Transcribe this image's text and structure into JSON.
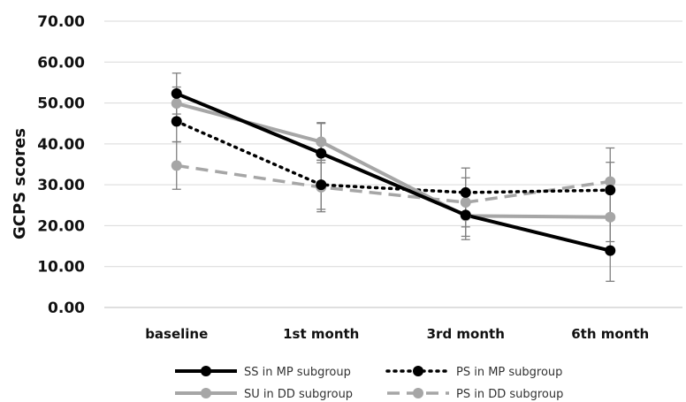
{
  "chart_data": {
    "type": "line",
    "title": "",
    "xlabel": "",
    "ylabel": "GCPS scores",
    "ylim": [
      0,
      70
    ],
    "yticks": [
      "0.00",
      "10.00",
      "20.00",
      "30.00",
      "40.00",
      "50.00",
      "60.00",
      "70.00"
    ],
    "categories": [
      "baseline",
      "1st month",
      "3rd month",
      "6th month"
    ],
    "grid": true,
    "legend_position": "bottom",
    "series": [
      {
        "name": "SS in MP subgroup",
        "values": [
          52.3,
          37.7,
          22.6,
          13.9
        ],
        "error": [
          5.0,
          7.5,
          6.0,
          7.5
        ],
        "color": "#000000",
        "style": "solid",
        "marker_color": "#000000"
      },
      {
        "name": "PS in MP subgroup",
        "values": [
          45.5,
          30.0,
          28.1,
          28.7
        ],
        "error": [
          5.0,
          6.0,
          6.0,
          6.8
        ],
        "color": "#000000",
        "style": "dotted",
        "marker_color": "#000000"
      },
      {
        "name": "SU in DD subgroup",
        "values": [
          49.9,
          40.5,
          22.4,
          22.1
        ],
        "error": [
          4.0,
          4.5,
          5.0,
          6.0
        ],
        "color": "#a6a6a6",
        "style": "solid",
        "marker_color": "#a6a6a6"
      },
      {
        "name": "PS in DD subgroup",
        "values": [
          34.7,
          29.4,
          25.7,
          30.8
        ],
        "error": [
          5.8,
          6.0,
          6.0,
          8.2
        ],
        "color": "#a6a6a6",
        "style": "dashed",
        "marker_color": "#a6a6a6"
      }
    ]
  }
}
